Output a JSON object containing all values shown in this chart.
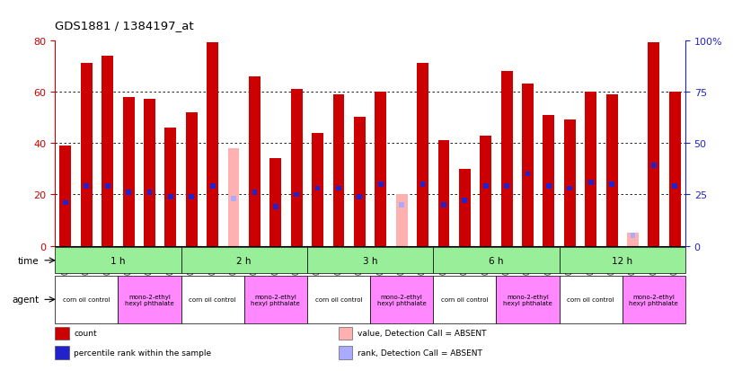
{
  "title": "GDS1881 / 1384197_at",
  "samples": [
    "GSM100955",
    "GSM100956",
    "GSM100957",
    "GSM100969",
    "GSM100970",
    "GSM100971",
    "GSM100958",
    "GSM100959",
    "GSM100972",
    "GSM100973",
    "GSM100974",
    "GSM100975",
    "GSM100960",
    "GSM100961",
    "GSM100962",
    "GSM100976",
    "GSM100977",
    "GSM100978",
    "GSM100963",
    "GSM100964",
    "GSM100965",
    "GSM100979",
    "GSM100980",
    "GSM100981",
    "GSM100951",
    "GSM100952",
    "GSM100953",
    "GSM100966",
    "GSM100967",
    "GSM100968"
  ],
  "counts": [
    39,
    71,
    74,
    58,
    57,
    46,
    52,
    79,
    38,
    66,
    34,
    61,
    44,
    59,
    50,
    60,
    20,
    71,
    41,
    30,
    43,
    68,
    63,
    51,
    49,
    60,
    59,
    5,
    79,
    60
  ],
  "ranks": [
    21,
    29,
    29,
    26,
    26,
    24,
    24,
    29,
    23,
    26,
    19,
    25,
    28,
    28,
    24,
    30,
    20,
    30,
    20,
    22,
    29,
    29,
    35,
    29,
    28,
    31,
    30,
    5,
    39,
    29
  ],
  "absent_value": [
    false,
    false,
    false,
    false,
    false,
    false,
    false,
    false,
    true,
    false,
    false,
    false,
    false,
    false,
    false,
    false,
    true,
    false,
    false,
    false,
    false,
    false,
    false,
    false,
    false,
    false,
    false,
    true,
    false,
    false
  ],
  "absent_rank": [
    false,
    false,
    false,
    false,
    false,
    false,
    false,
    false,
    true,
    false,
    false,
    false,
    false,
    false,
    false,
    false,
    true,
    false,
    false,
    false,
    false,
    false,
    false,
    false,
    false,
    false,
    false,
    true,
    false,
    false
  ],
  "ylim_left": [
    0,
    80
  ],
  "ylim_right": [
    0,
    100
  ],
  "yticks_left": [
    0,
    20,
    40,
    60,
    80
  ],
  "yticks_right": [
    0,
    25,
    50,
    75,
    100
  ],
  "ytick_labels_right": [
    "0",
    "25",
    "50",
    "75",
    "100%"
  ],
  "bar_color": "#cc0000",
  "rank_color": "#2222cc",
  "absent_bar_color": "#ffb0b0",
  "absent_rank_color": "#aaaaff",
  "bar_width": 0.55,
  "time_groups": [
    {
      "label": "1 h",
      "start": 0,
      "end": 6
    },
    {
      "label": "2 h",
      "start": 6,
      "end": 12
    },
    {
      "label": "3 h",
      "start": 12,
      "end": 18
    },
    {
      "label": "6 h",
      "start": 18,
      "end": 24
    },
    {
      "label": "12 h",
      "start": 24,
      "end": 30
    }
  ],
  "agent_groups": [
    {
      "label": "corn oil control",
      "start": 0,
      "end": 3,
      "type": "white"
    },
    {
      "label": "mono-2-ethyl\nhexyl phthalate",
      "start": 3,
      "end": 6,
      "type": "pink"
    },
    {
      "label": "corn oil control",
      "start": 6,
      "end": 9,
      "type": "white"
    },
    {
      "label": "mono-2-ethyl\nhexyl phthalate",
      "start": 9,
      "end": 12,
      "type": "pink"
    },
    {
      "label": "corn oil control",
      "start": 12,
      "end": 15,
      "type": "white"
    },
    {
      "label": "mono-2-ethyl\nhexyl phthalate",
      "start": 15,
      "end": 18,
      "type": "pink"
    },
    {
      "label": "corn oil control",
      "start": 18,
      "end": 21,
      "type": "white"
    },
    {
      "label": "mono-2-ethyl\nhexyl phthalate",
      "start": 21,
      "end": 24,
      "type": "pink"
    },
    {
      "label": "corn oil control",
      "start": 24,
      "end": 27,
      "type": "white"
    },
    {
      "label": "mono-2-ethyl\nhexyl phthalate",
      "start": 27,
      "end": 30,
      "type": "pink"
    }
  ],
  "time_color": "#99ee99",
  "agent_white_color": "#ffffff",
  "agent_pink_color": "#ff88ff",
  "legend_items": [
    {
      "label": "count",
      "color": "#cc0000",
      "row": 0,
      "col": 0
    },
    {
      "label": "percentile rank within the sample",
      "color": "#2222cc",
      "row": 1,
      "col": 0
    },
    {
      "label": "value, Detection Call = ABSENT",
      "color": "#ffb0b0",
      "row": 0,
      "col": 1
    },
    {
      "label": "rank, Detection Call = ABSENT",
      "color": "#aaaaff",
      "row": 1,
      "col": 1
    }
  ],
  "bg_color": "#ffffff",
  "tick_left_color": "#cc0000",
  "tick_right_color": "#2222cc"
}
